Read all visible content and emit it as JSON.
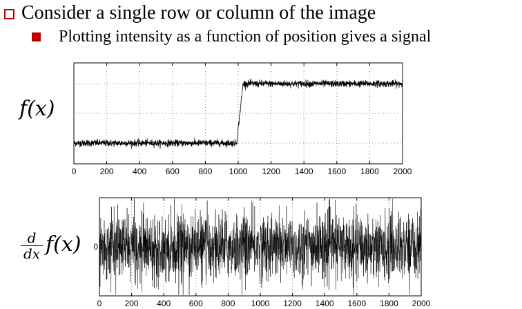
{
  "bullets": {
    "level1": "Consider a single row or column of the image",
    "level2": "Plotting intensity as a function of position gives a signal"
  },
  "icons": {
    "level1": "hollow-square-bullet-icon",
    "level2": "filled-square-bullet-icon"
  },
  "colors": {
    "bullet": "#c00000"
  },
  "chart_data": [
    {
      "type": "line",
      "xlabel": "",
      "ylabel_prefix": "",
      "ylabel": "f(x)",
      "x_ticks": [
        0,
        200,
        400,
        600,
        800,
        1000,
        1200,
        1400,
        1600,
        1800,
        2000
      ],
      "xlim": [
        0,
        2000
      ],
      "grid": true,
      "signal": {
        "kind": "noisy-step",
        "low_level": 0,
        "high_level": 1,
        "step_start": 990,
        "step_end": 1030
      }
    },
    {
      "type": "line",
      "xlabel": "",
      "ylabel_prefix": "d/dx",
      "ylabel": "f(x)",
      "y_ticks": [
        0
      ],
      "x_ticks": [
        0,
        200,
        400,
        600,
        800,
        1000,
        1200,
        1400,
        1600,
        1800,
        2000
      ],
      "xlim": [
        0,
        2000
      ],
      "grid": true,
      "signal": {
        "kind": "noise",
        "mean": 0
      }
    }
  ]
}
